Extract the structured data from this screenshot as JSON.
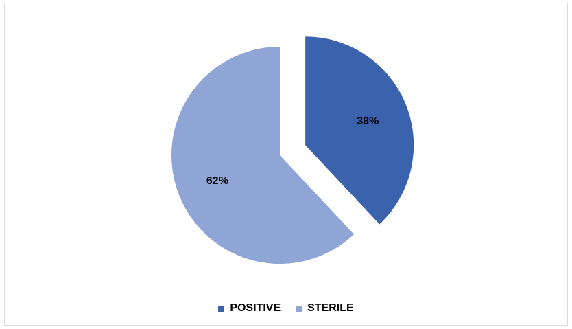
{
  "chart_data": {
    "type": "pie",
    "title": "",
    "slices": [
      {
        "name": "POSITIVE",
        "value": 38,
        "label": "38%",
        "color": "#3a62ad",
        "exploded": true
      },
      {
        "name": "STERILE",
        "value": 62,
        "label": "62%",
        "color": "#8fa5d6",
        "exploded": false
      }
    ],
    "legend": {
      "position": "bottom",
      "entries": [
        "POSITIVE",
        "STERILE"
      ]
    }
  }
}
